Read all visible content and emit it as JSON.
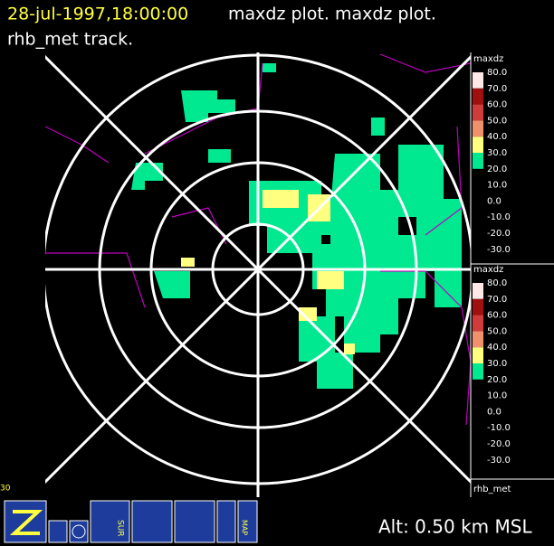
{
  "header": {
    "time": "28-jul-1997,18:00:00",
    "rest": "maxdz plot.  maxdz plot.",
    "line2": "rhb_met track."
  },
  "legends": [
    {
      "title": "maxdz",
      "labels": [
        "80.0",
        "70.0",
        "60.0",
        "50.0",
        "40.0",
        "30.0",
        "20.0",
        "10.0",
        "0.0",
        "-10.0",
        "-20.0",
        "-30.0"
      ],
      "colors": [
        "#ffe8e8",
        "#a01010",
        "#d03c3c",
        "#f0906c",
        "#ffff80",
        "#00e890"
      ]
    },
    {
      "title": "maxdz",
      "labels": [
        "80.0",
        "70.0",
        "60.0",
        "50.0",
        "40.0",
        "30.0",
        "20.0",
        "10.0",
        "0.0",
        "-10.0",
        "-20.0",
        "-30.0"
      ],
      "colors": [
        "#ffe8e8",
        "#a01010",
        "#d03c3c",
        "#f0906c",
        "#ffff80",
        "#00e890"
      ]
    }
  ],
  "legend_footer": "rhb_met",
  "corner_label": "30",
  "toolbar": {
    "sur": "SUR",
    "map": "MAP"
  },
  "altitude": "Alt: 0.50 km MSL"
}
